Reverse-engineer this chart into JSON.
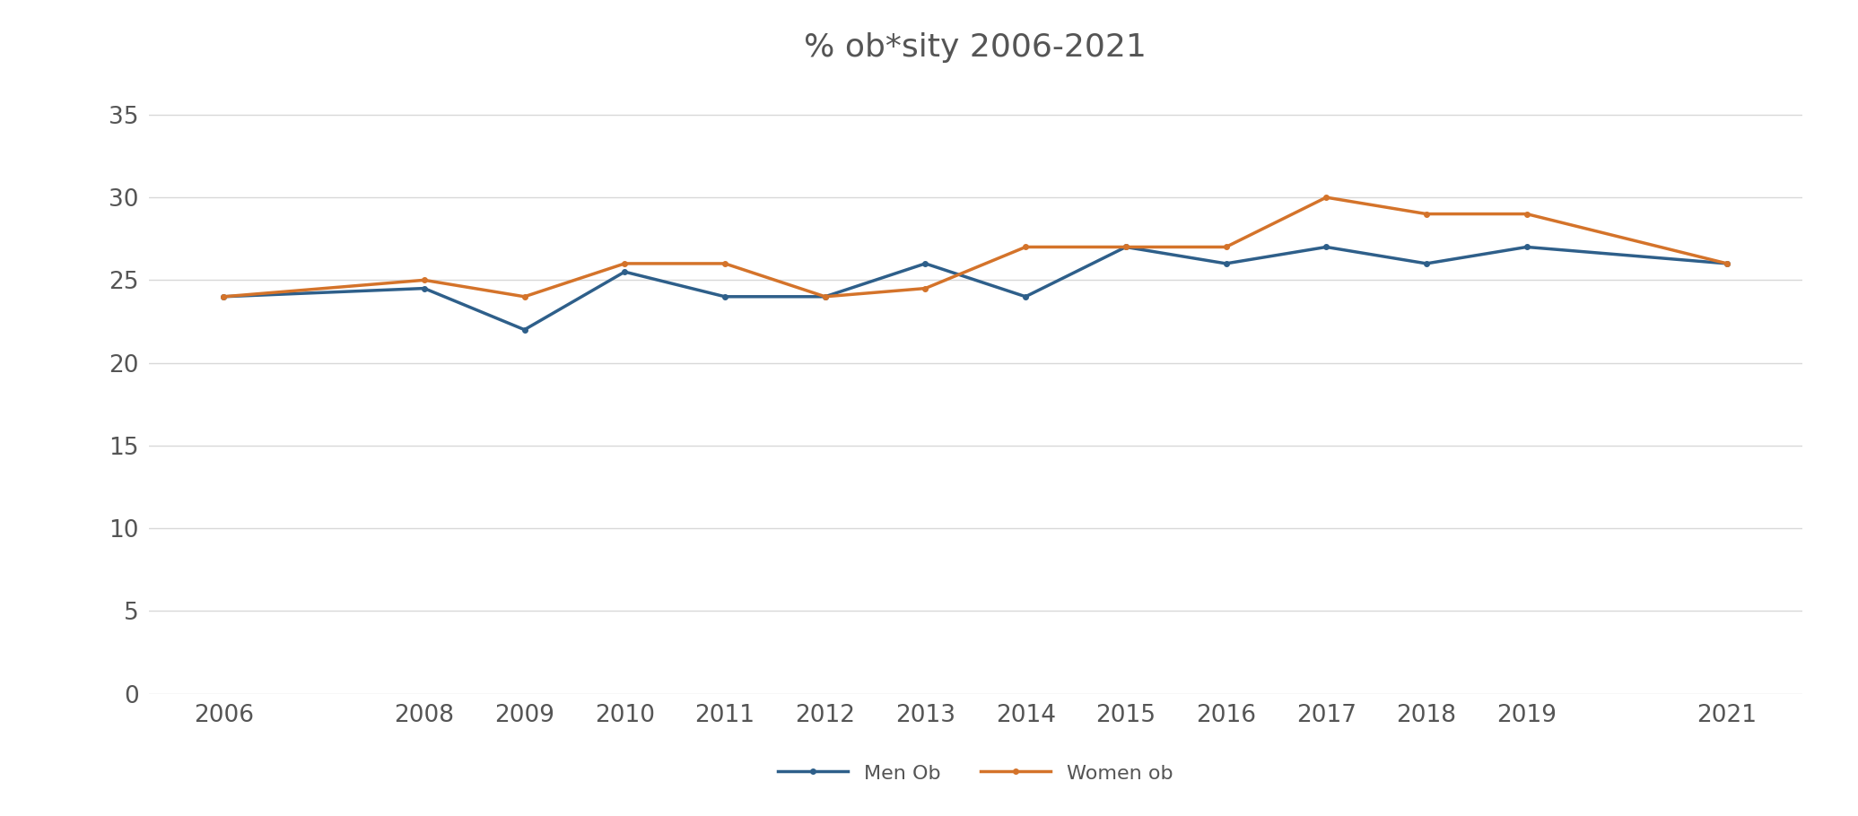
{
  "title": "% ob*sity 2006-2021",
  "years": [
    2006,
    2008,
    2009,
    2010,
    2011,
    2012,
    2013,
    2014,
    2015,
    2016,
    2017,
    2018,
    2019,
    2021
  ],
  "men_ob": [
    24,
    24.5,
    22,
    25.5,
    24,
    24,
    26,
    24,
    27,
    26,
    27,
    26,
    27,
    26
  ],
  "women_ob": [
    24,
    25,
    24,
    26,
    26,
    24,
    24.5,
    27,
    27,
    27,
    30,
    29,
    29,
    26
  ],
  "men_color": "#2E5F8A",
  "women_color": "#D4732A",
  "men_label": "Men Ob",
  "women_label": "Women ob",
  "ylim": [
    0,
    37
  ],
  "yticks": [
    0,
    5,
    10,
    15,
    20,
    25,
    30,
    35
  ],
  "background_color": "#ffffff",
  "grid_color": "#d8d8d8",
  "title_fontsize": 26,
  "tick_fontsize": 19,
  "legend_fontsize": 16,
  "line_width": 2.5,
  "marker": "o",
  "marker_size": 4
}
